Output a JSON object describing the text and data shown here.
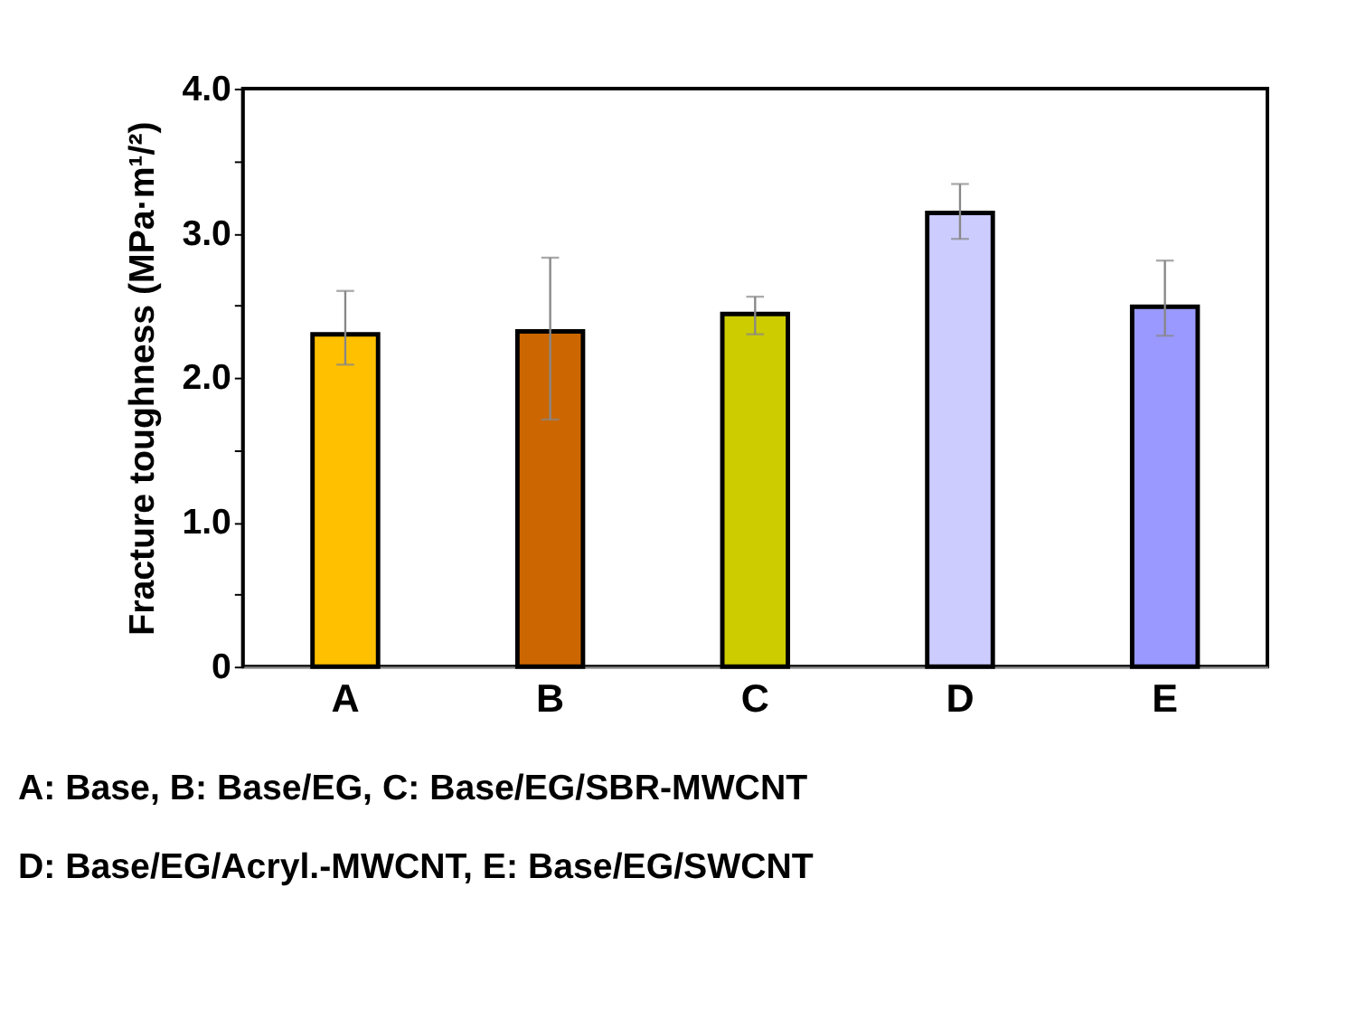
{
  "chart_data": {
    "type": "bar",
    "ylabel": "Fracture toughness (MPa·m¹/²)",
    "categories": [
      "A",
      "B",
      "C",
      "D",
      "E"
    ],
    "values": [
      2.3,
      2.32,
      2.44,
      3.14,
      2.49
    ],
    "colors": [
      "#ffc000",
      "#cc6600",
      "#cccc00",
      "#ccccff",
      "#9999ff"
    ],
    "errors": [
      [
        2.09,
        2.6
      ],
      [
        1.71,
        2.83
      ],
      [
        2.3,
        2.56
      ],
      [
        2.96,
        3.34
      ],
      [
        2.29,
        2.81
      ]
    ],
    "ylim": [
      0,
      4.0
    ],
    "yticks": [
      0,
      {
        "value": 0.5,
        "label": null
      },
      {
        "value": 1.0,
        "label": "1.0"
      },
      {
        "value": 1.5,
        "label": null
      },
      {
        "value": 2.0,
        "label": "2.0"
      },
      {
        "value": 2.5,
        "label": null
      },
      {
        "value": 3.0,
        "label": "3.0"
      },
      {
        "value": 3.5,
        "label": null
      },
      {
        "value": 4.0,
        "label": "4.0"
      }
    ],
    "grid": false,
    "annotations": [
      "A: Base, B: Base/EG, C: Base/EG/SBR-MWCNT",
      "D: Base/EG/Acryl.-MWCNT, E: Base/EG/SWCNT"
    ]
  }
}
